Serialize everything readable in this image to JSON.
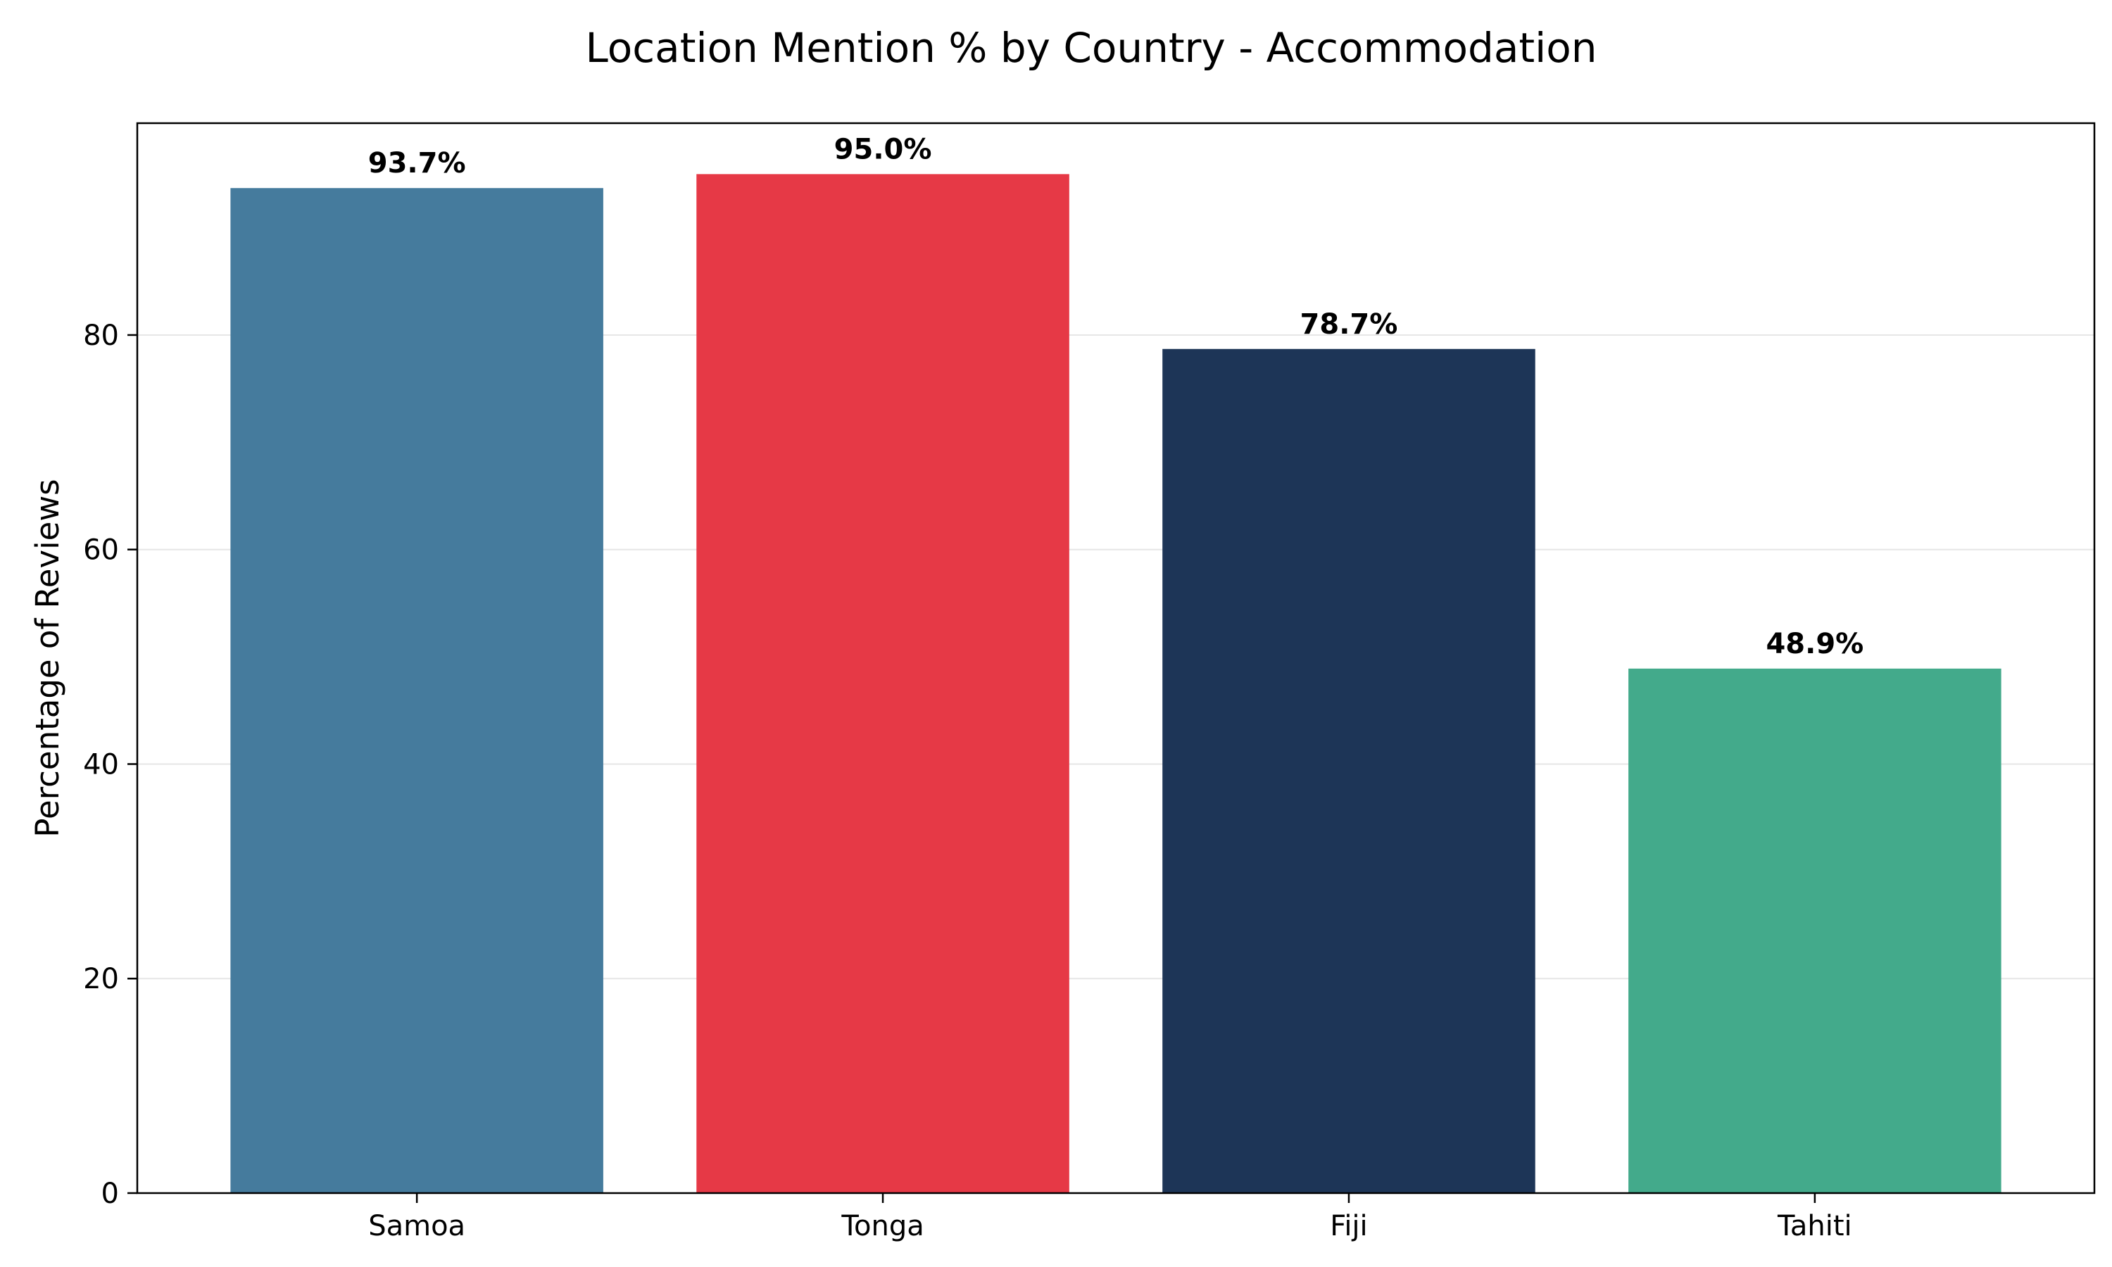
{
  "chart_data": {
    "type": "bar",
    "title": "Location Mention % by Country - Accommodation",
    "xlabel": "",
    "ylabel": "Percentage of Reviews",
    "categories": [
      "Samoa",
      "Tonga",
      "Fiji",
      "Tahiti"
    ],
    "values": [
      93.7,
      95.0,
      78.7,
      48.9
    ],
    "value_labels": [
      "93.7%",
      "95.0%",
      "78.7%",
      "48.9%"
    ],
    "colors": [
      "#457b9d",
      "#e63946",
      "#1d3557",
      "#43aa8b"
    ],
    "ylim": [
      0,
      99.75
    ],
    "yticks": [
      0,
      20,
      40,
      60,
      80
    ],
    "grid": "horizontal",
    "grid_color": "#e6e6e6"
  }
}
